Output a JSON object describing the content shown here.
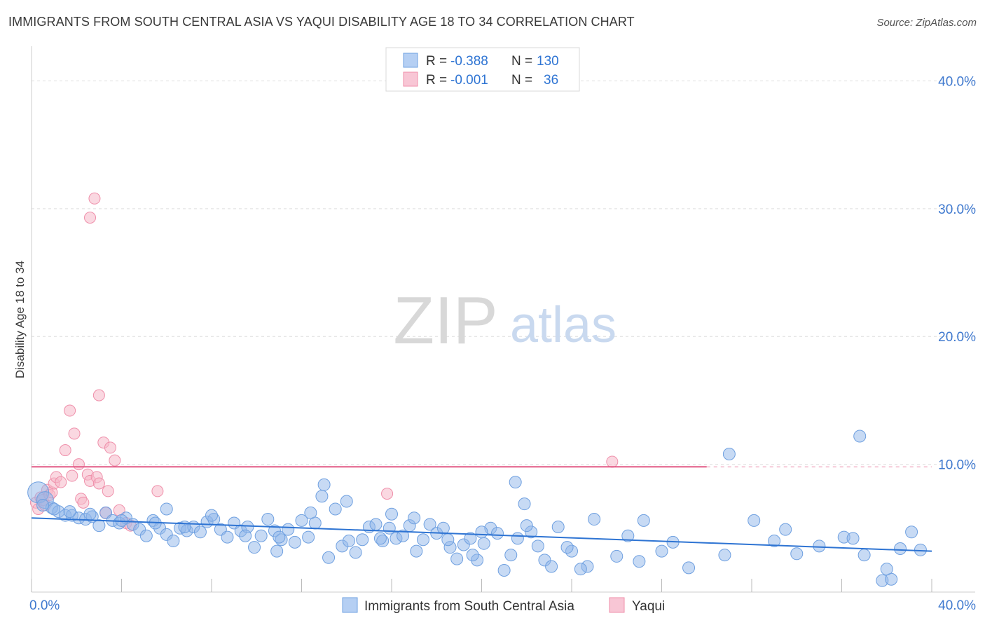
{
  "chart_data": {
    "type": "scatter",
    "title": "IMMIGRANTS FROM SOUTH CENTRAL ASIA VS YAQUI DISABILITY AGE 18 TO 34 CORRELATION CHART",
    "source": "Source: ZipAtlas.com",
    "watermark": {
      "zip": "ZIP",
      "atlas": "atlas"
    },
    "ylabel": "Disability Age 18 to 34",
    "xlabel": "",
    "xlim": [
      0,
      40
    ],
    "ylim": [
      0,
      42
    ],
    "x_tick_labels": [
      {
        "value": 0,
        "label": "0.0%"
      },
      {
        "value": 40,
        "label": "40.0%"
      }
    ],
    "y_tick_labels": [
      {
        "value": 10,
        "label": "10.0%"
      },
      {
        "value": 20,
        "label": "20.0%"
      },
      {
        "value": 30,
        "label": "30.0%"
      },
      {
        "value": 40,
        "label": "40.0%"
      }
    ],
    "legend_stats": [
      {
        "r_label": "R = ",
        "r_value": "-0.388",
        "n_label": "N = ",
        "n_value": "130",
        "color": "#6fa0e0"
      },
      {
        "r_label": "R = ",
        "r_value": "-0.001",
        "n_label": "N = ",
        "n_value": "36",
        "color": "#ef8faa"
      }
    ],
    "series": [
      {
        "name": "Immigrants from South Central Asia",
        "color": "#8fb5ea",
        "stroke": "#6fa0e0",
        "trend": {
          "x0": 0,
          "y0": 5.8,
          "x1": 40,
          "y1": 3.2,
          "color": "#2e74d3"
        },
        "points": [
          [
            0.3,
            7.8
          ],
          [
            0.6,
            7.2
          ],
          [
            0.9,
            6.6
          ],
          [
            1.2,
            6.3
          ],
          [
            1.5,
            6.0
          ],
          [
            1.8,
            6.0
          ],
          [
            2.1,
            5.8
          ],
          [
            2.4,
            5.7
          ],
          [
            2.7,
            5.9
          ],
          [
            3.0,
            5.2
          ],
          [
            3.3,
            6.2
          ],
          [
            3.6,
            5.6
          ],
          [
            3.9,
            5.4
          ],
          [
            4.2,
            5.8
          ],
          [
            4.5,
            5.3
          ],
          [
            4.8,
            4.9
          ],
          [
            5.1,
            4.4
          ],
          [
            5.4,
            5.6
          ],
          [
            5.7,
            5.0
          ],
          [
            6.0,
            4.5
          ],
          [
            6.3,
            4.0
          ],
          [
            6.6,
            5.0
          ],
          [
            6.9,
            4.8
          ],
          [
            7.2,
            5.1
          ],
          [
            7.5,
            4.7
          ],
          [
            7.8,
            5.5
          ],
          [
            8.1,
            5.7
          ],
          [
            8.4,
            4.9
          ],
          [
            8.7,
            4.3
          ],
          [
            9.0,
            5.4
          ],
          [
            9.3,
            4.8
          ],
          [
            9.6,
            5.1
          ],
          [
            9.9,
            3.5
          ],
          [
            10.2,
            4.4
          ],
          [
            10.5,
            5.7
          ],
          [
            10.8,
            4.8
          ],
          [
            11.1,
            4.1
          ],
          [
            11.4,
            4.9
          ],
          [
            11.7,
            3.9
          ],
          [
            12.0,
            5.6
          ],
          [
            12.3,
            4.3
          ],
          [
            12.6,
            5.4
          ],
          [
            12.9,
            7.5
          ],
          [
            13.2,
            2.7
          ],
          [
            13.5,
            6.5
          ],
          [
            13.8,
            3.6
          ],
          [
            14.1,
            4.0
          ],
          [
            14.4,
            3.1
          ],
          [
            14.7,
            4.1
          ],
          [
            15.0,
            5.1
          ],
          [
            15.3,
            5.3
          ],
          [
            15.6,
            4.0
          ],
          [
            15.9,
            5.0
          ],
          [
            16.2,
            4.2
          ],
          [
            16.5,
            4.4
          ],
          [
            16.8,
            5.2
          ],
          [
            17.1,
            3.2
          ],
          [
            17.4,
            4.1
          ],
          [
            17.7,
            5.3
          ],
          [
            18.0,
            4.6
          ],
          [
            18.3,
            5.0
          ],
          [
            18.6,
            3.5
          ],
          [
            18.9,
            2.6
          ],
          [
            19.2,
            3.7
          ],
          [
            19.5,
            4.2
          ],
          [
            19.8,
            2.5
          ],
          [
            20.1,
            3.8
          ],
          [
            20.4,
            5.0
          ],
          [
            20.7,
            4.6
          ],
          [
            21.0,
            1.7
          ],
          [
            21.3,
            2.9
          ],
          [
            21.6,
            4.2
          ],
          [
            21.9,
            6.9
          ],
          [
            22.2,
            4.7
          ],
          [
            22.5,
            3.6
          ],
          [
            22.8,
            2.5
          ],
          [
            23.1,
            2.0
          ],
          [
            23.4,
            5.1
          ],
          [
            24.0,
            3.2
          ],
          [
            24.7,
            2.0
          ],
          [
            25.0,
            5.7
          ],
          [
            26.5,
            4.4
          ],
          [
            27.2,
            5.6
          ],
          [
            28.0,
            3.2
          ],
          [
            29.2,
            1.9
          ],
          [
            30.8,
            2.9
          ],
          [
            32.1,
            5.6
          ],
          [
            33.5,
            4.9
          ],
          [
            35.0,
            3.6
          ],
          [
            36.1,
            4.3
          ],
          [
            36.5,
            4.2
          ],
          [
            37.0,
            2.9
          ],
          [
            37.8,
            0.9
          ],
          [
            38.2,
            1.0
          ],
          [
            38.6,
            3.4
          ],
          [
            39.1,
            4.7
          ],
          [
            0.5,
            6.8
          ],
          [
            1.0,
            6.5
          ],
          [
            1.7,
            6.3
          ],
          [
            2.6,
            6.1
          ],
          [
            4.0,
            5.6
          ],
          [
            5.5,
            5.4
          ],
          [
            6.8,
            5.1
          ],
          [
            8.0,
            6.0
          ],
          [
            9.5,
            4.4
          ],
          [
            11.0,
            4.3
          ],
          [
            13.0,
            8.4
          ],
          [
            15.5,
            4.2
          ],
          [
            17.0,
            5.8
          ],
          [
            18.5,
            4.1
          ],
          [
            20.0,
            4.7
          ],
          [
            21.5,
            8.6
          ],
          [
            23.8,
            3.5
          ],
          [
            26.0,
            2.8
          ],
          [
            28.5,
            3.9
          ],
          [
            31.0,
            10.8
          ],
          [
            34.0,
            3.0
          ],
          [
            36.8,
            12.2
          ],
          [
            38.0,
            1.8
          ],
          [
            39.5,
            3.3
          ],
          [
            6.0,
            6.5
          ],
          [
            12.4,
            6.2
          ],
          [
            16.0,
            6.1
          ],
          [
            22.0,
            5.2
          ],
          [
            24.4,
            1.8
          ],
          [
            33.0,
            4.0
          ],
          [
            10.9,
            3.2
          ],
          [
            14.0,
            7.1
          ],
          [
            19.6,
            2.9
          ],
          [
            27.0,
            2.4
          ]
        ],
        "sizes": [
          [
            0,
            15
          ],
          [
            1,
            12
          ]
        ]
      },
      {
        "name": "Yaqui",
        "color": "#f5b8c9",
        "stroke": "#ef8faa",
        "trend": {
          "x0": 0,
          "y0": 9.8,
          "x1": 30,
          "y1": 9.8,
          "x2": 40,
          "color": "#e25a86"
        },
        "points": [
          [
            0.2,
            7.0
          ],
          [
            0.3,
            6.5
          ],
          [
            0.4,
            7.4
          ],
          [
            0.5,
            7.2
          ],
          [
            0.6,
            6.8
          ],
          [
            0.7,
            8.0
          ],
          [
            0.8,
            7.6
          ],
          [
            0.9,
            7.8
          ],
          [
            1.0,
            8.5
          ],
          [
            1.1,
            9.0
          ],
          [
            1.3,
            8.6
          ],
          [
            1.5,
            11.1
          ],
          [
            1.7,
            14.2
          ],
          [
            1.8,
            9.1
          ],
          [
            1.9,
            12.4
          ],
          [
            2.1,
            10.0
          ],
          [
            2.2,
            7.3
          ],
          [
            2.3,
            7.0
          ],
          [
            2.5,
            9.2
          ],
          [
            2.6,
            8.7
          ],
          [
            2.8,
            30.8
          ],
          [
            2.9,
            9.0
          ],
          [
            3.0,
            8.5
          ],
          [
            3.2,
            11.7
          ],
          [
            3.3,
            6.2
          ],
          [
            3.5,
            11.3
          ],
          [
            3.7,
            10.3
          ],
          [
            3.9,
            6.4
          ],
          [
            4.2,
            5.4
          ],
          [
            4.4,
            5.2
          ],
          [
            2.6,
            29.3
          ],
          [
            3.0,
            15.4
          ],
          [
            3.4,
            7.9
          ],
          [
            5.6,
            7.9
          ],
          [
            15.8,
            7.7
          ],
          [
            25.8,
            10.2
          ]
        ]
      }
    ]
  }
}
